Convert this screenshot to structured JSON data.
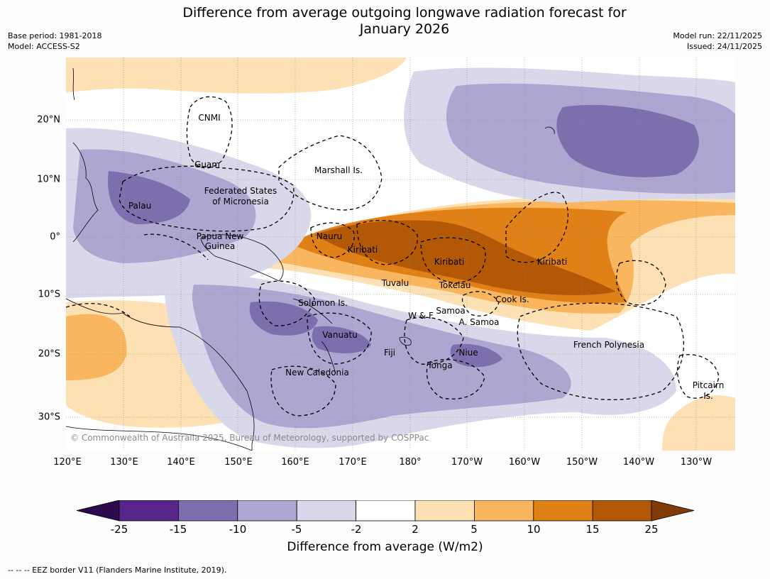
{
  "title": {
    "line1": "Difference from average outgoing longwave radiation forecast for",
    "line2": "January 2026"
  },
  "meta": {
    "base_period": "Base period: 1981-2018",
    "model": "Model: ACCESS-S2",
    "model_run": "Model run: 22/11/2025",
    "issued": "Issued: 24/11/2025"
  },
  "map": {
    "lon_labels": [
      "120°E",
      "130°E",
      "140°E",
      "150°E",
      "160°E",
      "170°E",
      "180°",
      "170°W",
      "160°W",
      "150°W",
      "140°W",
      "130°W"
    ],
    "lat_labels": [
      "20°N",
      "10°N",
      "0°",
      "10°S",
      "20°S",
      "30°S"
    ],
    "regions": {
      "cnmi": "CNMI",
      "guam": "Guam",
      "marshall": "Marshall Is.",
      "fsm_1": "Federated States",
      "fsm_2": "of Micronesia",
      "palau": "Palau",
      "png_1": "Papua New",
      "png_2": "Guinea",
      "nauru": "Nauru",
      "kiribati_west": "Kiribati",
      "kiribati_central": "Kiribati",
      "kiribati_east": "Kiribati",
      "tuvalu": "Tuvalu",
      "tokelau": "Tokelau",
      "cook": "Cook Is.",
      "solomon": "Solomon Is.",
      "wf": "W & F",
      "samoa": "Samoa",
      "american_samoa": "A. Samoa",
      "vanuatu": "Vanuatu",
      "fiji": "Fiji",
      "niue": "Niue",
      "tonga": "Tonga",
      "new_caledonia": "New Caledonia",
      "french_polynesia": "French Polynesia",
      "pitcairn_1": "Pitcairn",
      "pitcairn_2": "Is."
    },
    "copyright": "© Commonwealth of Australia 2025, Bureau of Meteorology, supported by COSPPac"
  },
  "legend": {
    "title": "Difference from average (W/m2)",
    "ticks": [
      "-25",
      "-15",
      "-10",
      "-5",
      "-2",
      "2",
      "5",
      "10",
      "15",
      "25"
    ],
    "colors": [
      "#2d0a4e",
      "#58258c",
      "#7d6ead",
      "#ada6d1",
      "#d8d8ea",
      "#ffffff",
      "#fde0b3",
      "#f9b65f",
      "#e08118",
      "#b35806",
      "#7f3b08"
    ]
  },
  "footnote": "-- -- -- EEZ border V11 (Flanders Marine Institute, 2019)."
}
